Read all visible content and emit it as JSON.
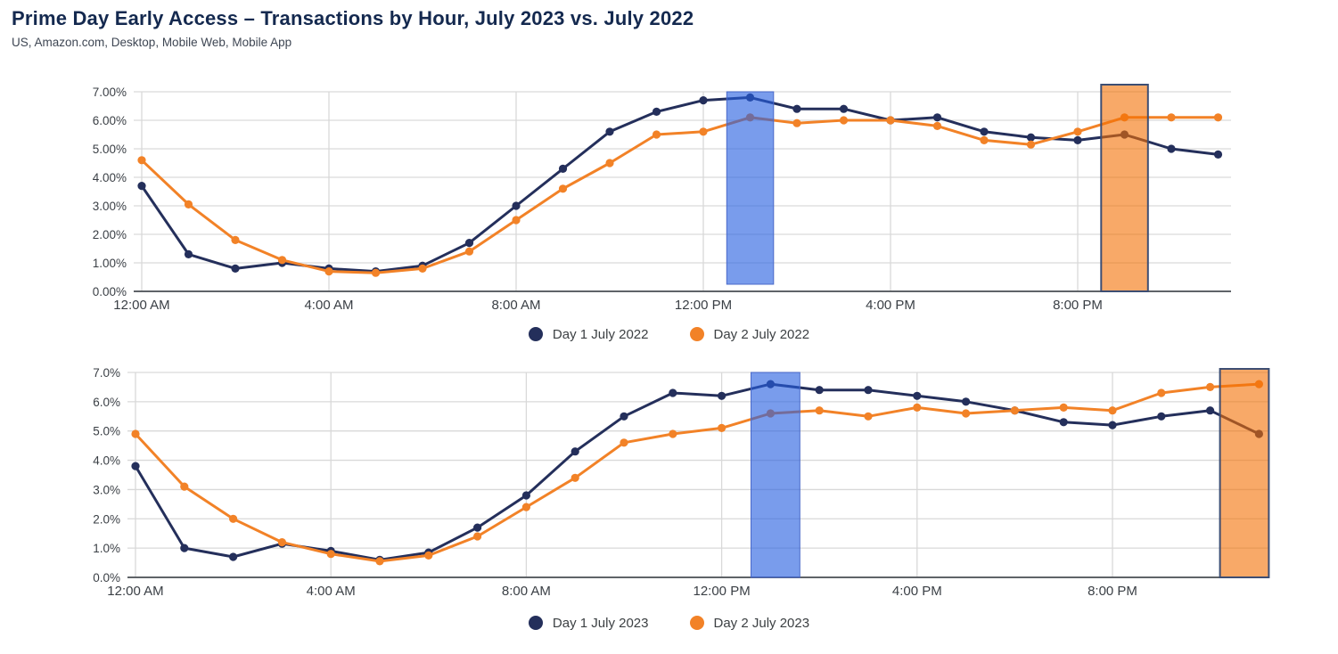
{
  "header": {
    "title": "Prime Day Early Access – Transactions by Hour, July 2023 vs. July 2022",
    "subtitle": "US, Amazon.com, Desktop, Mobile Web, Mobile App"
  },
  "colors": {
    "navy": "#242f5b",
    "orange": "#f28227",
    "blue_band": "#265fe1",
    "orange_band": "#f47003",
    "band_border_navy": "#3d4e73",
    "band_border_blue": "#4a69c9",
    "gridline": "#d9d9d9",
    "axis_line": "#5f6368",
    "axis_text": "#3a3f45"
  },
  "chart_data": [
    {
      "type": "line",
      "title": "Transactions by Hour – July 2022",
      "x_unit": "hour of day (24 hourly points, 12:00 AM – 11:00 PM)",
      "x_ticks": [
        {
          "hour": 0,
          "label": "12:00 AM"
        },
        {
          "hour": 4,
          "label": "4:00 AM"
        },
        {
          "hour": 8,
          "label": "8:00 AM"
        },
        {
          "hour": 12,
          "label": "12:00 PM"
        },
        {
          "hour": 16,
          "label": "4:00 PM"
        },
        {
          "hour": 20,
          "label": "8:00 PM"
        }
      ],
      "ylim": [
        0,
        7
      ],
      "y_ticks": [
        "0.00%",
        "1.00%",
        "2.00%",
        "3.00%",
        "4.00%",
        "5.00%",
        "6.00%",
        "7.00%"
      ],
      "grid": true,
      "legend_position": "bottom",
      "series": [
        {
          "name": "Day 1 July 2022",
          "color_key": "navy",
          "values": [
            3.7,
            1.3,
            0.8,
            1.0,
            0.8,
            0.7,
            0.9,
            1.7,
            3.0,
            4.3,
            5.6,
            6.3,
            6.7,
            6.8,
            6.4,
            6.4,
            6.0,
            6.1,
            5.6,
            5.4,
            5.3,
            5.5,
            5.0,
            4.8
          ]
        },
        {
          "name": "Day 2 July 2022",
          "color_key": "orange",
          "values": [
            4.6,
            3.05,
            1.8,
            1.1,
            0.7,
            0.65,
            0.8,
            1.4,
            2.5,
            3.6,
            4.5,
            5.5,
            5.6,
            6.1,
            5.9,
            6.0,
            6.0,
            5.8,
            5.3,
            5.15,
            5.6,
            6.1,
            6.1,
            6.1
          ]
        }
      ],
      "highlights": [
        {
          "name": "blue-highlight-band",
          "color_key": "blue_band",
          "border_key": "band_border_blue",
          "border_width": 1,
          "from_hour": 12.5,
          "to_hour": 13.5,
          "opacity": 0.62
        },
        {
          "name": "orange-highlight-band",
          "color_key": "orange_band",
          "border_key": "band_border_navy",
          "border_width": 2,
          "from_hour": 20.5,
          "to_hour": 21.5,
          "opacity": 0.6
        }
      ]
    },
    {
      "type": "line",
      "title": "Transactions by Hour – July 2023",
      "x_unit": "hour of day (24 hourly points, 12:00 AM – 11:00 PM)",
      "x_ticks": [
        {
          "hour": 0,
          "label": "12:00 AM"
        },
        {
          "hour": 4,
          "label": "4:00 AM"
        },
        {
          "hour": 8,
          "label": "8:00 AM"
        },
        {
          "hour": 12,
          "label": "12:00 PM"
        },
        {
          "hour": 16,
          "label": "4:00 PM"
        },
        {
          "hour": 20,
          "label": "8:00 PM"
        }
      ],
      "ylim": [
        0,
        7
      ],
      "y_ticks": [
        "0.0%",
        "1.0%",
        "2.0%",
        "3.0%",
        "4.0%",
        "5.0%",
        "6.0%",
        "7.0%"
      ],
      "grid": true,
      "legend_position": "bottom",
      "series": [
        {
          "name": "Day 1 July 2023",
          "color_key": "navy",
          "values": [
            3.8,
            1.0,
            0.7,
            1.15,
            0.9,
            0.6,
            0.85,
            1.7,
            2.8,
            4.3,
            5.5,
            6.3,
            6.2,
            6.6,
            6.4,
            6.4,
            6.2,
            6.0,
            5.7,
            5.3,
            5.2,
            5.5,
            5.7,
            4.9
          ]
        },
        {
          "name": "Day 2 July 2023",
          "color_key": "orange",
          "values": [
            4.9,
            3.1,
            2.0,
            1.2,
            0.8,
            0.55,
            0.75,
            1.4,
            2.4,
            3.4,
            4.6,
            4.9,
            5.1,
            5.6,
            5.7,
            5.5,
            5.8,
            5.6,
            5.7,
            5.8,
            5.7,
            6.3,
            6.5,
            6.6
          ]
        }
      ],
      "highlights": [
        {
          "name": "blue-highlight-band",
          "color_key": "blue_band",
          "border_key": "band_border_blue",
          "border_width": 1,
          "from_hour": 12.6,
          "to_hour": 13.6,
          "opacity": 0.62
        },
        {
          "name": "orange-highlight-band",
          "color_key": "orange_band",
          "border_key": "band_border_navy",
          "border_width": 2,
          "from_hour": 22.2,
          "to_hour": 23.2,
          "opacity": 0.6
        }
      ]
    }
  ]
}
